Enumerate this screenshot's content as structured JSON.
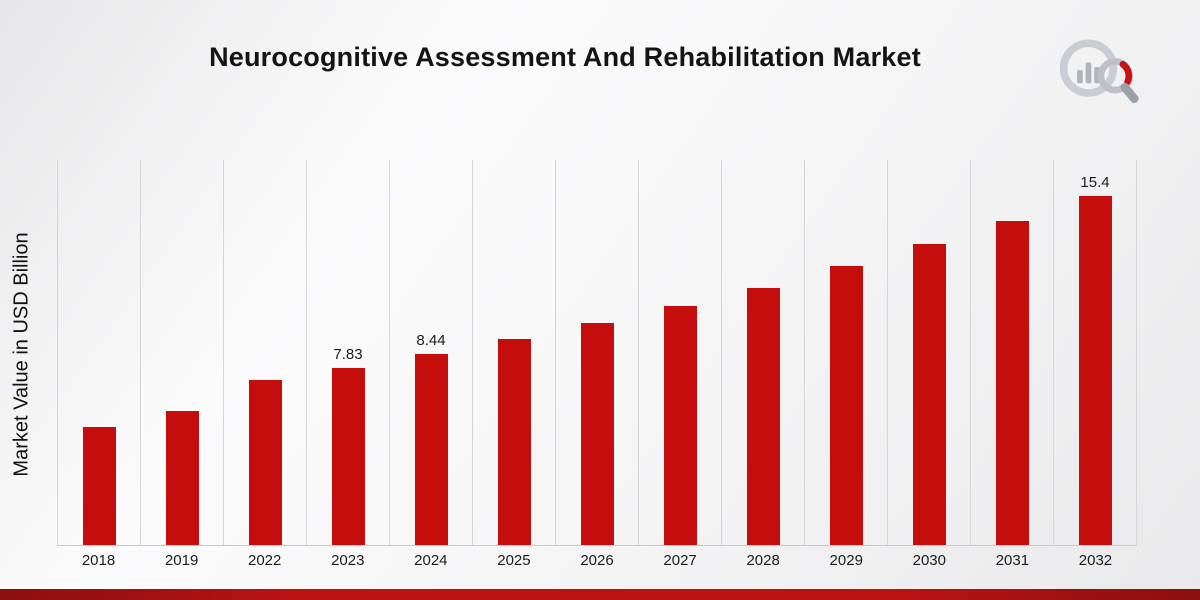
{
  "header": {
    "title": "Neurocognitive Assessment And Rehabilitation Market"
  },
  "y_axis": {
    "label": "Market Value in USD Billion"
  },
  "logo": {
    "icon": "bar-chart-magnifier-logo"
  },
  "footer": {
    "accent_color": "#bb1212"
  },
  "chart_data": {
    "type": "bar",
    "title": "Neurocognitive Assessment And Rehabilitation Market",
    "xlabel": "",
    "ylabel": "Market Value in USD Billion",
    "categories": [
      "2018",
      "2019",
      "2022",
      "2023",
      "2024",
      "2025",
      "2026",
      "2027",
      "2028",
      "2029",
      "2030",
      "2031",
      "2032"
    ],
    "values": [
      5.2,
      5.9,
      7.3,
      7.83,
      8.44,
      9.1,
      9.8,
      10.55,
      11.35,
      12.3,
      13.3,
      14.3,
      15.4
    ],
    "data_labels": {
      "2023": "7.83",
      "2024": "8.44",
      "2032": "15.4"
    },
    "ylim": [
      0,
      17
    ],
    "bar_color": "#c50d0d",
    "grid": "vertical-only",
    "legend": "none"
  }
}
